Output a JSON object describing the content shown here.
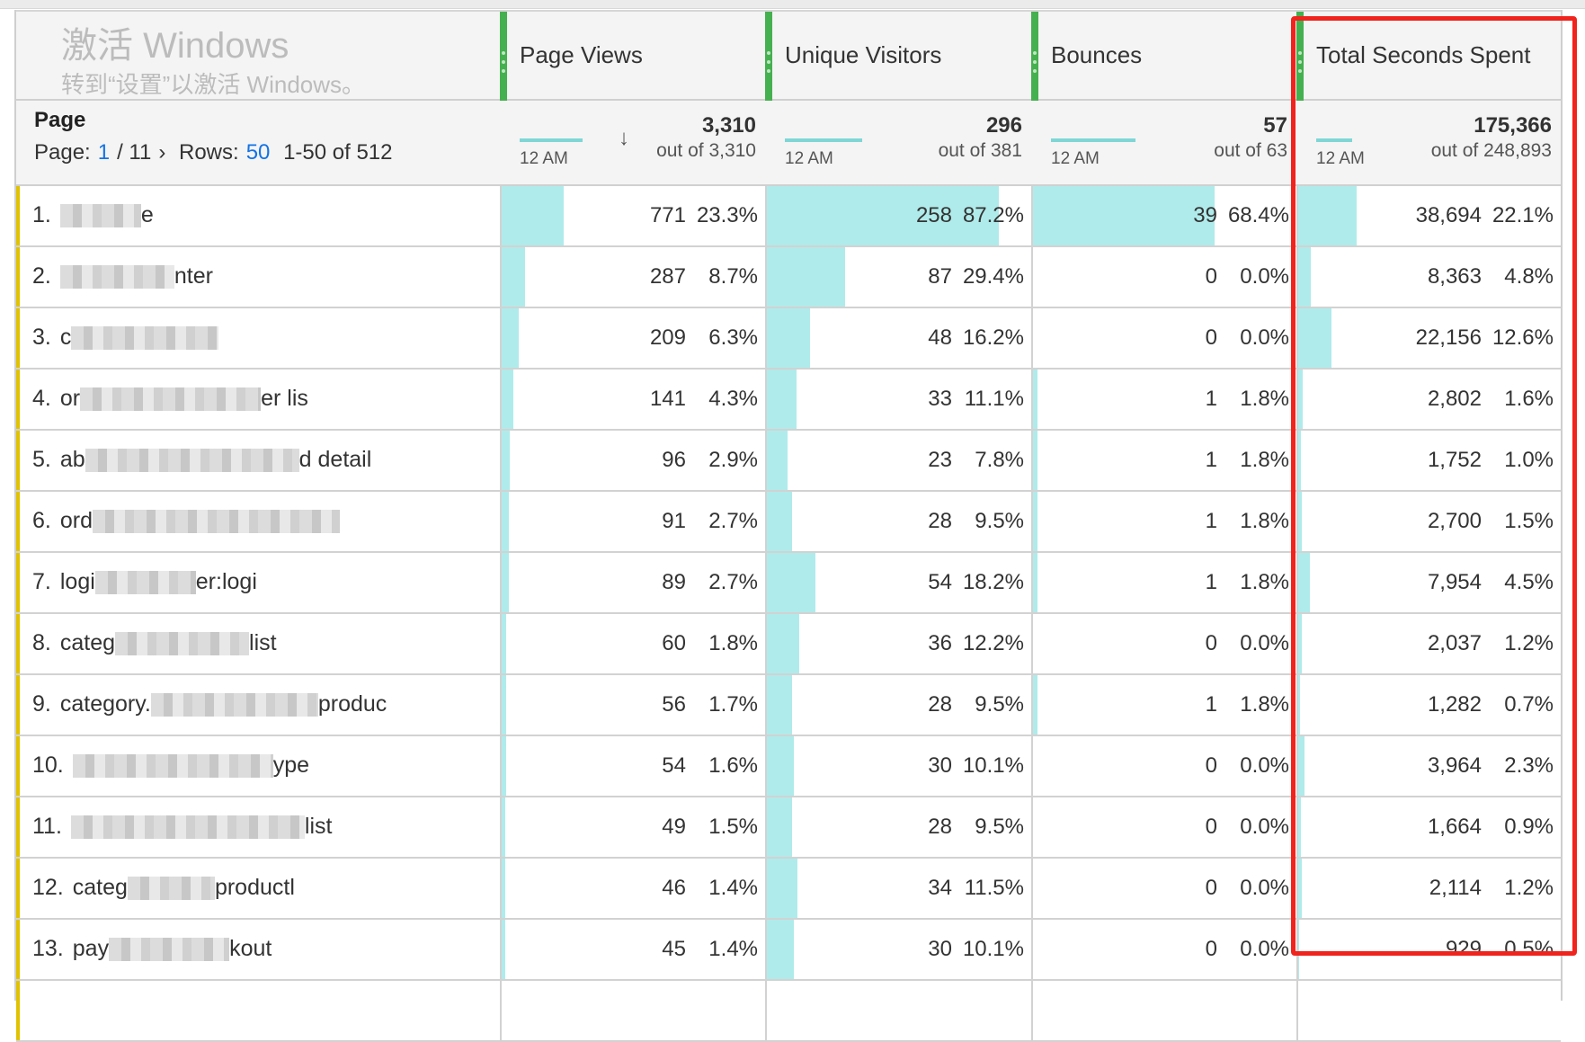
{
  "header": {
    "dimension_title": "Page",
    "pager": {
      "page_label": "Page:",
      "page_current": "1",
      "page_total": "/ 11",
      "next_icon": "chevron-right-icon",
      "next_glyph": "›",
      "rows_label": "Rows:",
      "rows_value": "50",
      "range": "1-50 of 512"
    },
    "sort_icon": "arrow-down-icon",
    "sort_glyph": "↓"
  },
  "columns": [
    {
      "title": "Page Views",
      "spark_label": "12 AM",
      "total": "3,310",
      "out_of": "out of 3,310"
    },
    {
      "title": "Unique Visitors",
      "spark_label": "12 AM",
      "total": "296",
      "out_of": "out of 381"
    },
    {
      "title": "Bounces",
      "spark_label": "12 AM",
      "total": "57",
      "out_of": "out of 63"
    },
    {
      "title": "Total Seconds Spent",
      "spark_label": "12 AM",
      "total": "175,366",
      "out_of": "out of 248,893"
    }
  ],
  "colors": {
    "column_grip": "#45b04f",
    "bar": "#b0ebeb",
    "accent": "#e0c200",
    "highlight_box": "#f0231d",
    "link": "#1473e6"
  },
  "rows": [
    {
      "idx": "1.",
      "name_start": "",
      "name_end": "e",
      "values": [
        [
          "771",
          "23.3%"
        ],
        [
          "258",
          "87.2%"
        ],
        [
          "39",
          "68.4%"
        ],
        [
          "38,694",
          "22.1%"
        ]
      ]
    },
    {
      "idx": "2.",
      "name_start": "",
      "name_end": "nter",
      "values": [
        [
          "287",
          "8.7%"
        ],
        [
          "87",
          "29.4%"
        ],
        [
          "0",
          "0.0%"
        ],
        [
          "8,363",
          "4.8%"
        ]
      ]
    },
    {
      "idx": "3.",
      "name_start": "c",
      "name_end": "",
      "values": [
        [
          "209",
          "6.3%"
        ],
        [
          "48",
          "16.2%"
        ],
        [
          "0",
          "0.0%"
        ],
        [
          "22,156",
          "12.6%"
        ]
      ]
    },
    {
      "idx": "4.",
      "name_start": "or",
      "name_end": "er lis",
      "values": [
        [
          "141",
          "4.3%"
        ],
        [
          "33",
          "11.1%"
        ],
        [
          "1",
          "1.8%"
        ],
        [
          "2,802",
          "1.6%"
        ]
      ]
    },
    {
      "idx": "5.",
      "name_start": "ab",
      "name_end": "d detail",
      "values": [
        [
          "96",
          "2.9%"
        ],
        [
          "23",
          "7.8%"
        ],
        [
          "1",
          "1.8%"
        ],
        [
          "1,752",
          "1.0%"
        ]
      ]
    },
    {
      "idx": "6.",
      "name_start": "ord",
      "name_end": "",
      "values": [
        [
          "91",
          "2.7%"
        ],
        [
          "28",
          "9.5%"
        ],
        [
          "1",
          "1.8%"
        ],
        [
          "2,700",
          "1.5%"
        ]
      ]
    },
    {
      "idx": "7.",
      "name_start": "logi",
      "name_end": "er:logi",
      "values": [
        [
          "89",
          "2.7%"
        ],
        [
          "54",
          "18.2%"
        ],
        [
          "1",
          "1.8%"
        ],
        [
          "7,954",
          "4.5%"
        ]
      ]
    },
    {
      "idx": "8.",
      "name_start": "categ",
      "name_end": "list",
      "values": [
        [
          "60",
          "1.8%"
        ],
        [
          "36",
          "12.2%"
        ],
        [
          "0",
          "0.0%"
        ],
        [
          "2,037",
          "1.2%"
        ]
      ]
    },
    {
      "idx": "9.",
      "name_start": "category.",
      "name_end": "produc",
      "values": [
        [
          "56",
          "1.7%"
        ],
        [
          "28",
          "9.5%"
        ],
        [
          "1",
          "1.8%"
        ],
        [
          "1,282",
          "0.7%"
        ]
      ]
    },
    {
      "idx": "10.",
      "name_start": "",
      "name_end": "ype",
      "values": [
        [
          "54",
          "1.6%"
        ],
        [
          "30",
          "10.1%"
        ],
        [
          "0",
          "0.0%"
        ],
        [
          "3,964",
          "2.3%"
        ]
      ]
    },
    {
      "idx": "11.",
      "name_start": "",
      "name_end": "list",
      "values": [
        [
          "49",
          "1.5%"
        ],
        [
          "28",
          "9.5%"
        ],
        [
          "0",
          "0.0%"
        ],
        [
          "1,664",
          "0.9%"
        ]
      ]
    },
    {
      "idx": "12.",
      "name_start": "categ",
      "name_end": "productl",
      "values": [
        [
          "46",
          "1.4%"
        ],
        [
          "34",
          "11.5%"
        ],
        [
          "0",
          "0.0%"
        ],
        [
          "2,114",
          "1.2%"
        ]
      ]
    },
    {
      "idx": "13.",
      "name_start": "pay",
      "name_end": "kout",
      "values": [
        [
          "45",
          "1.4%"
        ],
        [
          "30",
          "10.1%"
        ],
        [
          "0",
          "0.0%"
        ],
        [
          "929",
          "0.5%"
        ]
      ]
    }
  ],
  "watermark": {
    "line1": "激活 Windows",
    "line2": "转到“设置”以激活 Windows。"
  }
}
